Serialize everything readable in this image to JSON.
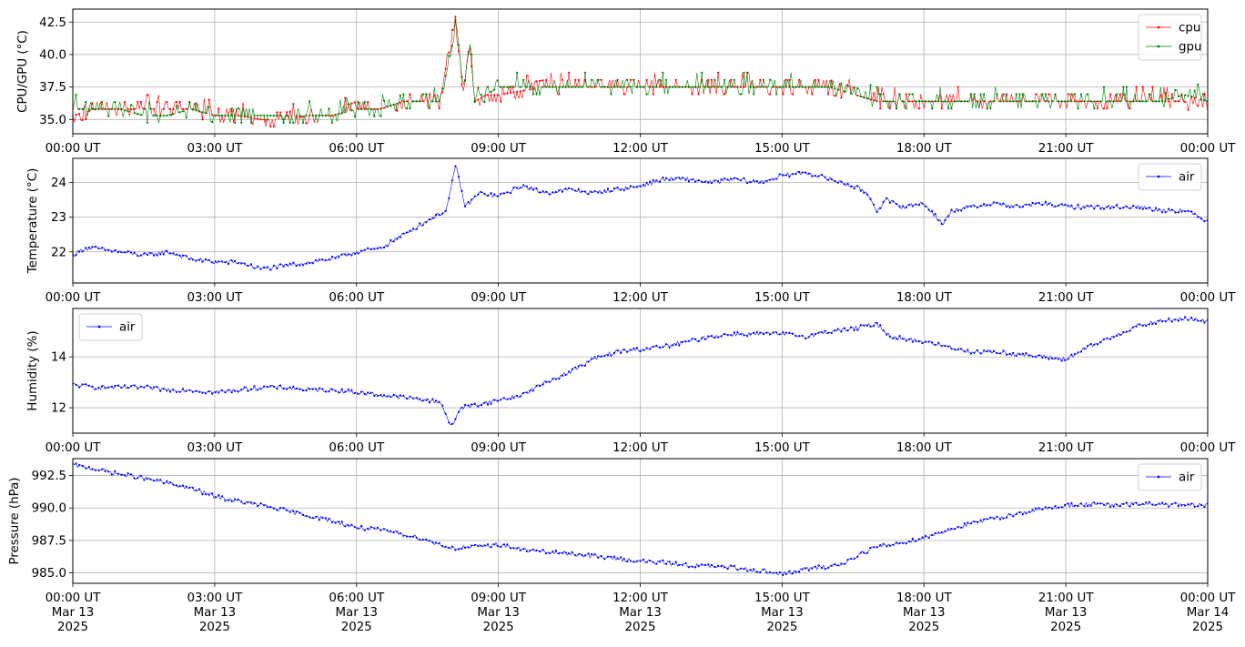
{
  "chart_data": [
    {
      "type": "line",
      "ylabel": "CPU/GPU (°C)",
      "ylim": [
        33.9,
        43.5
      ],
      "yticks": [
        35.0,
        37.5,
        40.0,
        42.5
      ],
      "ytick_labels": [
        "35.0",
        "37.5",
        "40.0",
        "42.5"
      ],
      "xlim": [
        "2025-03-13 00:00",
        "2025-03-14 00:00"
      ],
      "xtick_labels": [
        "00:00 UT",
        "03:00 UT",
        "06:00 UT",
        "09:00 UT",
        "12:00 UT",
        "15:00 UT",
        "18:00 UT",
        "21:00 UT",
        "00:00 UT"
      ],
      "grid": true,
      "legend": "upper-right",
      "x_hours": [
        0,
        0.5,
        1,
        1.5,
        2,
        2.5,
        3,
        3.5,
        4,
        4.5,
        5,
        5.5,
        6,
        6.5,
        7,
        7.5,
        7.75,
        8,
        8.1,
        8.25,
        8.4,
        8.5,
        8.75,
        9,
        10,
        10.5,
        11,
        12,
        13,
        14,
        15,
        16,
        17,
        18,
        19,
        20,
        21,
        22,
        23,
        23.5,
        24
      ],
      "series": [
        {
          "name": "cpu",
          "color": "#ff0000",
          "y": [
            35.3,
            35.8,
            35.8,
            35.8,
            35.8,
            35.8,
            35.3,
            35.3,
            35.0,
            35.0,
            35.3,
            35.3,
            35.8,
            35.8,
            36.4,
            36.4,
            36.4,
            41.0,
            42.5,
            36.9,
            40.5,
            36.4,
            36.9,
            36.9,
            37.5,
            37.5,
            37.5,
            37.5,
            37.5,
            37.5,
            37.5,
            37.5,
            36.4,
            36.4,
            36.4,
            36.4,
            36.4,
            36.4,
            36.4,
            36.4,
            35.8
          ]
        },
        {
          "name": "gpu",
          "color": "#008000",
          "y": [
            35.8,
            35.8,
            35.8,
            35.3,
            35.3,
            35.8,
            35.3,
            35.3,
            35.3,
            35.3,
            35.3,
            35.3,
            35.8,
            35.8,
            36.4,
            36.4,
            36.4,
            40.0,
            42.9,
            37.5,
            40.8,
            36.9,
            36.9,
            37.5,
            37.5,
            37.5,
            37.5,
            37.5,
            37.5,
            37.5,
            37.5,
            37.5,
            36.4,
            36.4,
            36.4,
            36.4,
            36.4,
            36.4,
            36.4,
            36.9,
            36.4
          ]
        }
      ]
    },
    {
      "type": "line",
      "ylabel": "Temperature (°C)",
      "ylim": [
        21.1,
        24.7
      ],
      "yticks": [
        22,
        23,
        24
      ],
      "ytick_labels": [
        "22",
        "23",
        "24"
      ],
      "xlim": [
        "2025-03-13 00:00",
        "2025-03-14 00:00"
      ],
      "xtick_labels": [
        "00:00 UT",
        "03:00 UT",
        "06:00 UT",
        "09:00 UT",
        "12:00 UT",
        "15:00 UT",
        "18:00 UT",
        "21:00 UT",
        "00:00 UT"
      ],
      "grid": true,
      "legend": "upper-right",
      "x_hours": [
        0,
        0.25,
        0.5,
        1,
        1.5,
        2,
        2.5,
        3,
        3.5,
        4,
        4.5,
        5,
        5.5,
        6,
        6.5,
        7,
        7.5,
        7.9,
        8.1,
        8.3,
        8.6,
        9,
        9.5,
        10,
        10.5,
        11,
        11.5,
        12,
        12.5,
        13,
        13.5,
        14,
        14.5,
        15,
        15.5,
        16,
        16.5,
        16.8,
        17.0,
        17.2,
        17.5,
        18,
        18.2,
        18.4,
        18.6,
        19,
        19.5,
        20,
        20.5,
        21,
        21.5,
        22,
        22.5,
        23,
        23.5,
        24
      ],
      "series": [
        {
          "name": "air",
          "color": "#0000ff",
          "y": [
            21.9,
            22.1,
            22.1,
            22.0,
            21.9,
            22.0,
            21.8,
            21.7,
            21.7,
            21.5,
            21.6,
            21.7,
            21.8,
            22.0,
            22.1,
            22.5,
            22.9,
            23.2,
            24.5,
            23.3,
            23.7,
            23.6,
            23.9,
            23.7,
            23.8,
            23.7,
            23.8,
            23.9,
            24.1,
            24.1,
            24.0,
            24.1,
            24.0,
            24.2,
            24.3,
            24.1,
            23.9,
            23.7,
            23.2,
            23.5,
            23.3,
            23.4,
            23.1,
            22.8,
            23.2,
            23.3,
            23.4,
            23.3,
            23.4,
            23.3,
            23.3,
            23.3,
            23.3,
            23.2,
            23.2,
            22.9
          ]
        }
      ]
    },
    {
      "type": "line",
      "ylabel": "Humidity (%)",
      "ylim": [
        11.0,
        15.9
      ],
      "yticks": [
        12,
        14
      ],
      "ytick_labels": [
        "12",
        "14"
      ],
      "xlim": [
        "2025-03-13 00:00",
        "2025-03-14 00:00"
      ],
      "xtick_labels": [
        "00:00 UT",
        "03:00 UT",
        "06:00 UT",
        "09:00 UT",
        "12:00 UT",
        "15:00 UT",
        "18:00 UT",
        "21:00 UT",
        "00:00 UT"
      ],
      "grid": true,
      "legend": "upper-left",
      "x_hours": [
        0,
        0.5,
        1,
        1.5,
        2,
        2.5,
        3,
        3.5,
        4,
        4.5,
        5,
        5.5,
        6,
        6.5,
        7,
        7.5,
        7.8,
        8.0,
        8.2,
        8.5,
        9,
        9.5,
        10,
        10.5,
        11,
        11.5,
        12,
        12.5,
        13,
        13.5,
        14,
        14.5,
        15,
        15.5,
        16,
        16.5,
        17,
        17.3,
        17.6,
        18,
        18.5,
        19,
        19.5,
        20,
        20.5,
        21,
        21.5,
        22,
        22.5,
        23,
        23.5,
        24
      ],
      "series": [
        {
          "name": "air",
          "color": "#0000ff",
          "y": [
            12.9,
            12.8,
            12.8,
            12.8,
            12.7,
            12.7,
            12.6,
            12.7,
            12.8,
            12.8,
            12.7,
            12.7,
            12.6,
            12.5,
            12.4,
            12.3,
            12.2,
            11.2,
            12.0,
            12.1,
            12.3,
            12.5,
            13.0,
            13.4,
            13.9,
            14.2,
            14.3,
            14.4,
            14.6,
            14.8,
            14.9,
            14.9,
            14.9,
            14.8,
            15.0,
            15.1,
            15.3,
            14.8,
            14.7,
            14.6,
            14.4,
            14.2,
            14.2,
            14.1,
            14.0,
            13.9,
            14.4,
            14.8,
            15.2,
            15.4,
            15.5,
            15.4
          ]
        }
      ]
    },
    {
      "type": "line",
      "ylabel": "Pressure (hPa)",
      "ylim": [
        984.2,
        993.8
      ],
      "yticks": [
        985.0,
        987.5,
        990.0,
        992.5
      ],
      "ytick_labels": [
        "985.0",
        "987.5",
        "990.0",
        "992.5"
      ],
      "xlim": [
        "2025-03-13 00:00",
        "2025-03-14 00:00"
      ],
      "xtick_labels": [
        "00:00 UT\nMar 13\n2025",
        "03:00 UT\nMar 13\n2025",
        "06:00 UT\nMar 13\n2025",
        "09:00 UT\nMar 13\n2025",
        "12:00 UT\nMar 13\n2025",
        "15:00 UT\nMar 13\n2025",
        "18:00 UT\nMar 13\n2025",
        "21:00 UT\nMar 13\n2025",
        "00:00 UT\nMar 14\n2025"
      ],
      "grid": true,
      "legend": "upper-right",
      "x_hours": [
        0,
        0.5,
        1,
        1.5,
        2,
        2.5,
        3,
        3.5,
        4,
        4.5,
        5,
        5.5,
        6,
        6.5,
        7,
        7.5,
        8,
        8.5,
        9,
        9.5,
        10,
        10.5,
        11,
        11.5,
        12,
        12.5,
        13,
        13.5,
        14,
        14.5,
        15,
        15.5,
        16,
        16.3,
        16.6,
        17,
        17.5,
        18,
        18.5,
        19,
        19.5,
        20,
        20.5,
        21,
        21.5,
        22,
        22.5,
        23,
        23.5,
        24
      ],
      "series": [
        {
          "name": "air",
          "color": "#0000ff",
          "y": [
            993.3,
            993.0,
            992.6,
            992.3,
            991.9,
            991.5,
            990.9,
            990.5,
            990.2,
            989.8,
            989.4,
            989.0,
            988.5,
            988.3,
            988.0,
            987.5,
            986.9,
            987.0,
            987.2,
            986.8,
            986.6,
            986.5,
            986.3,
            986.1,
            985.9,
            985.8,
            985.6,
            985.5,
            985.4,
            985.2,
            984.9,
            985.3,
            985.5,
            985.7,
            986.4,
            987.0,
            987.3,
            987.7,
            988.3,
            988.8,
            989.2,
            989.6,
            989.9,
            990.2,
            990.3,
            990.2,
            990.3,
            990.3,
            990.2,
            990.2
          ]
        }
      ]
    }
  ]
}
